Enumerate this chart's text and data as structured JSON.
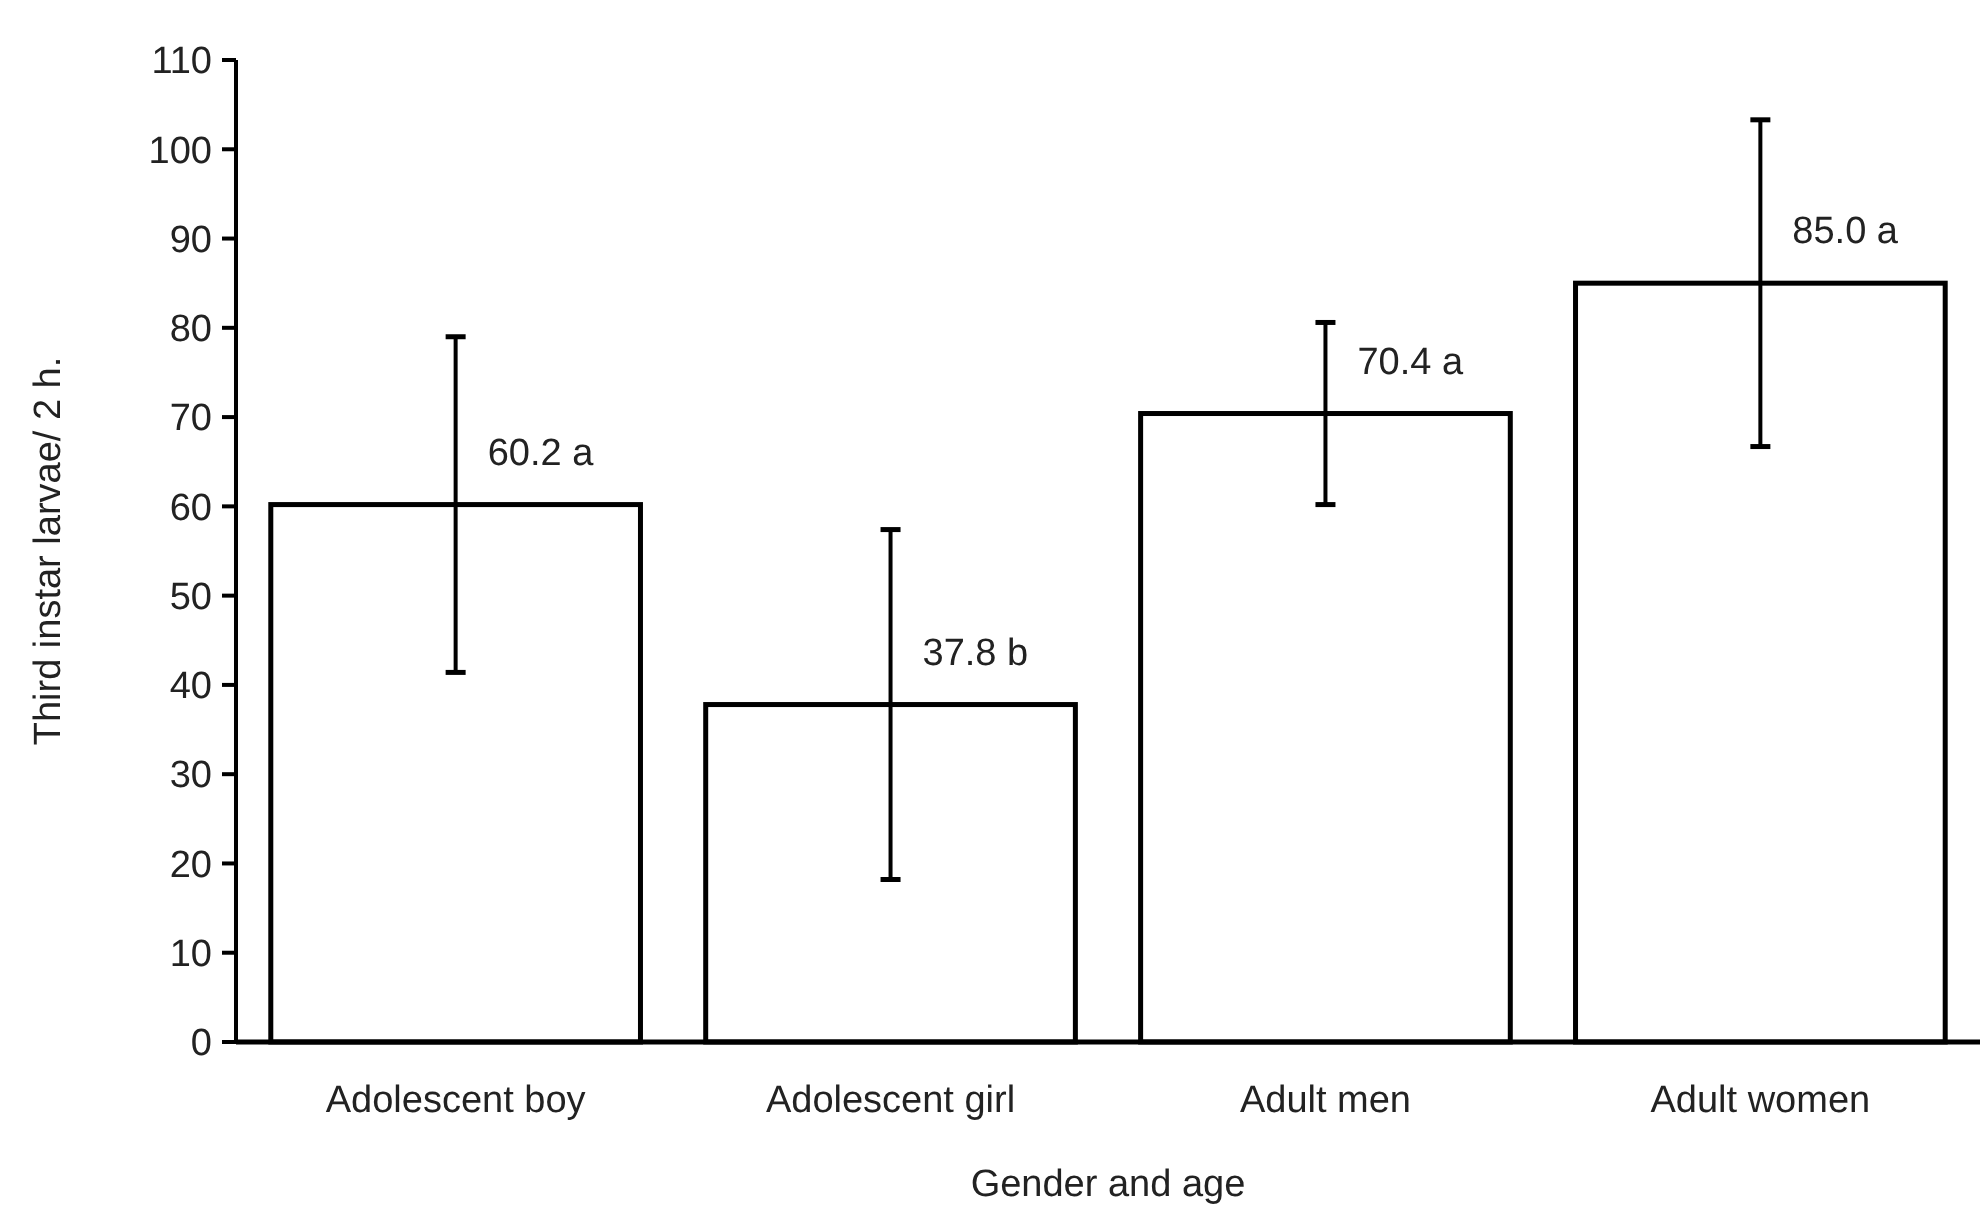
{
  "chart_data": {
    "type": "bar",
    "xlabel": "Gender and age",
    "ylabel": "Third instar larvae/ 2 h.",
    "categories": [
      "Adolescent boy",
      "Adolescent girl",
      "Adult men",
      "Adult women"
    ],
    "series": [
      {
        "color": "#ffffff",
        "values": [
          60.2,
          37.8,
          70.4,
          85.0
        ],
        "errors": [
          18.8,
          19.6,
          10.2,
          18.3
        ],
        "value_labels": [
          "60.2 a",
          "37.8 b",
          "70.4 a",
          "85.0 a"
        ]
      }
    ],
    "ylim": [
      0,
      110
    ],
    "yticks": [
      0,
      10,
      20,
      30,
      40,
      50,
      60,
      70,
      80,
      90,
      100,
      110
    ],
    "grid": false
  }
}
